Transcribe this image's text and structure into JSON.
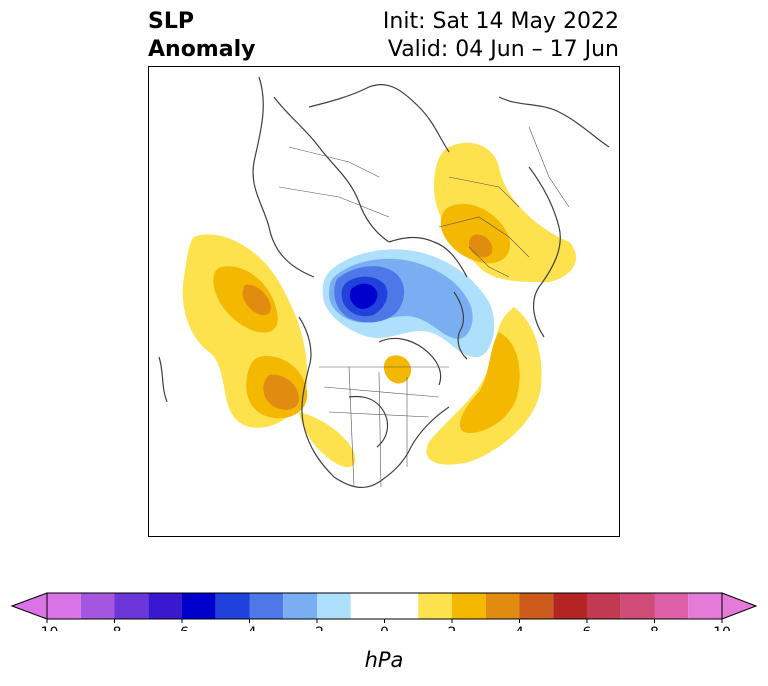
{
  "title": {
    "left_line1": "SLP",
    "left_line2": "Anomaly",
    "right_line1": "Init: Sat 14 May 2022",
    "right_line2": "Valid: 04 Jun – 17 Jun"
  },
  "colorbar": {
    "unit": "hPa",
    "levels": [
      -10,
      -9,
      -8,
      -7,
      -6,
      -5,
      -4,
      -3,
      -2,
      -1,
      1,
      2,
      3,
      4,
      5,
      6,
      7,
      8,
      9,
      10
    ],
    "colors": [
      "#d973e6",
      "#a556e0",
      "#6b37d8",
      "#3a18d0",
      "#0000cc",
      "#2141dc",
      "#4e78e8",
      "#79aff2",
      "#aee0fb",
      "#ffffff",
      "#fde24e",
      "#f4b800",
      "#e08c10",
      "#cc5a1a",
      "#b42423",
      "#c23a52",
      "#cf4c78",
      "#dc5fa8",
      "#e57bd8"
    ],
    "ticks": [
      -10,
      -8,
      -6,
      -4,
      -2,
      0,
      2,
      4,
      6,
      8,
      10
    ],
    "tick_labels": [
      "-10",
      "-8",
      "-6",
      "-4",
      "-2",
      "0",
      "2",
      "4",
      "6",
      "8",
      "10"
    ]
  },
  "map": {
    "projection": "polar stereographic (North Pole)",
    "anomaly_colors": {
      "light_yellow": "#fde24e",
      "yellow": "#f4b800",
      "orange": "#e08c10",
      "light_blue": "#aee0fb",
      "mid_blue": "#79aff2",
      "blue": "#4e78e8",
      "dark_blue": "#2141dc",
      "deep_blue": "#0000cc"
    }
  }
}
